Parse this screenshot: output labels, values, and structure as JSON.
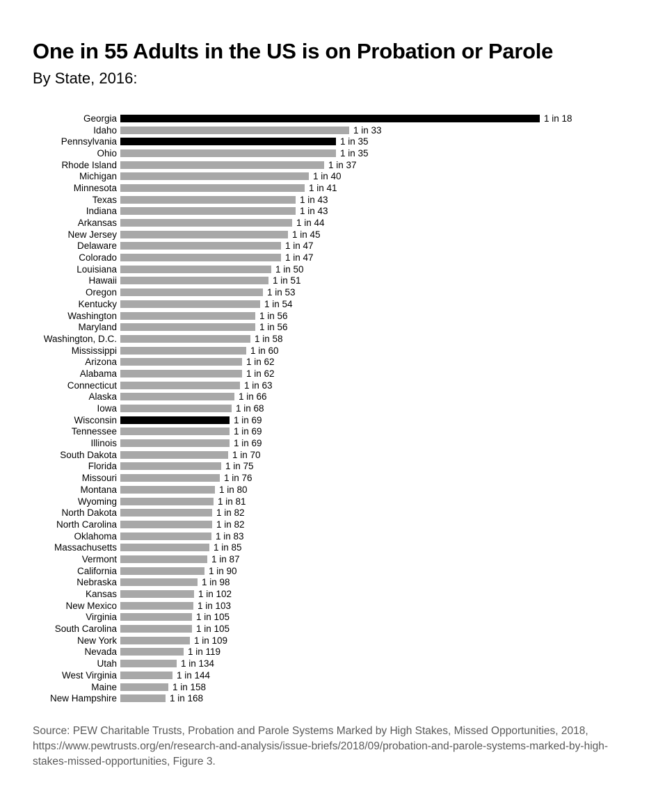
{
  "header": {
    "title": "One in 55 Adults in the US is on Probation or Parole",
    "subtitle": "By State, 2016:"
  },
  "colors": {
    "bar_default": "#a8a8a8",
    "bar_highlight": "#000000",
    "source_text": "#595959"
  },
  "chart_data": {
    "type": "bar",
    "orientation": "horizontal",
    "title": "One in 55 Adults in the US is on Probation or Parole",
    "subtitle": "By State, 2016:",
    "value_meaning": "1 in N adults on probation or parole (bar length proportional to 1/N)",
    "grid": false,
    "legend": false,
    "categories": [
      "Georgia",
      "Idaho",
      "Pennsylvania",
      "Ohio",
      "Rhode Island",
      "Michigan",
      "Minnesota",
      "Texas",
      "Indiana",
      "Arkansas",
      "New Jersey",
      "Delaware",
      "Colorado",
      "Louisiana",
      "Hawaii",
      "Oregon",
      "Kentucky",
      "Washington",
      "Maryland",
      "Washington, D.C.",
      "Mississippi",
      "Arizona",
      "Alabama",
      "Connecticut",
      "Alaska",
      "Iowa",
      "Wisconsin",
      "Tennessee",
      "Illinois",
      "South Dakota",
      "Florida",
      "Missouri",
      "Montana",
      "Wyoming",
      "North Dakota",
      "North Carolina",
      "Oklahoma",
      "Massachusetts",
      "Vermont",
      "California",
      "Nebraska",
      "Kansas",
      "New Mexico",
      "Virginia",
      "South Carolina",
      "New York",
      "Nevada",
      "Utah",
      "West Virginia",
      "Maine",
      "New Hampshire"
    ],
    "values": [
      18,
      33,
      35,
      35,
      37,
      40,
      41,
      43,
      43,
      44,
      45,
      47,
      47,
      50,
      51,
      53,
      54,
      56,
      56,
      58,
      60,
      62,
      62,
      63,
      66,
      68,
      69,
      69,
      69,
      70,
      75,
      76,
      80,
      81,
      82,
      82,
      83,
      85,
      87,
      90,
      98,
      102,
      103,
      105,
      105,
      109,
      119,
      134,
      144,
      158,
      168
    ],
    "value_labels": [
      "1 in 18",
      "1 in 33",
      "1 in 35",
      "1 in 35",
      "1 in 37",
      "1 in 40",
      "1 in 41",
      "1 in 43",
      "1 in 43",
      "1 in 44",
      "1 in 45",
      "1 in 47",
      "1 in 47",
      "1 in 50",
      "1 in 51",
      "1 in 53",
      "1 in 54",
      "1 in 56",
      "1 in 56",
      "1 in 58",
      "1 in 60",
      "1 in 62",
      "1 in 62",
      "1 in 63",
      "1 in 66",
      "1 in 68",
      "1 in 69",
      "1 in 69",
      "1 in 69",
      "1 in 70",
      "1 in 75",
      "1 in 76",
      "1 in 80",
      "1 in 81",
      "1 in 82",
      "1 in 82",
      "1 in 83",
      "1 in 85",
      "1 in 87",
      "1 in 90",
      "1 in 98",
      "1 in 102",
      "1 in 103",
      "1 in 105",
      "1 in 105",
      "1 in 109",
      "1 in 119",
      "1 in 134",
      "1 in 144",
      "1 in 158",
      "1 in 168"
    ],
    "highlighted_categories": [
      "Georgia",
      "Pennsylvania",
      "Wisconsin"
    ]
  },
  "source": {
    "lines": [
      "Source: PEW Charitable Trusts, Probation and Parole Systems Marked by High Stakes, Missed Opportunities, 2018,",
      "https://www.pewtrusts.org/en/research-and-analysis/issue-briefs/2018/09/probation-and-parole-systems-marked-by-high-",
      "stakes-missed-opportunities, Figure 3."
    ]
  }
}
